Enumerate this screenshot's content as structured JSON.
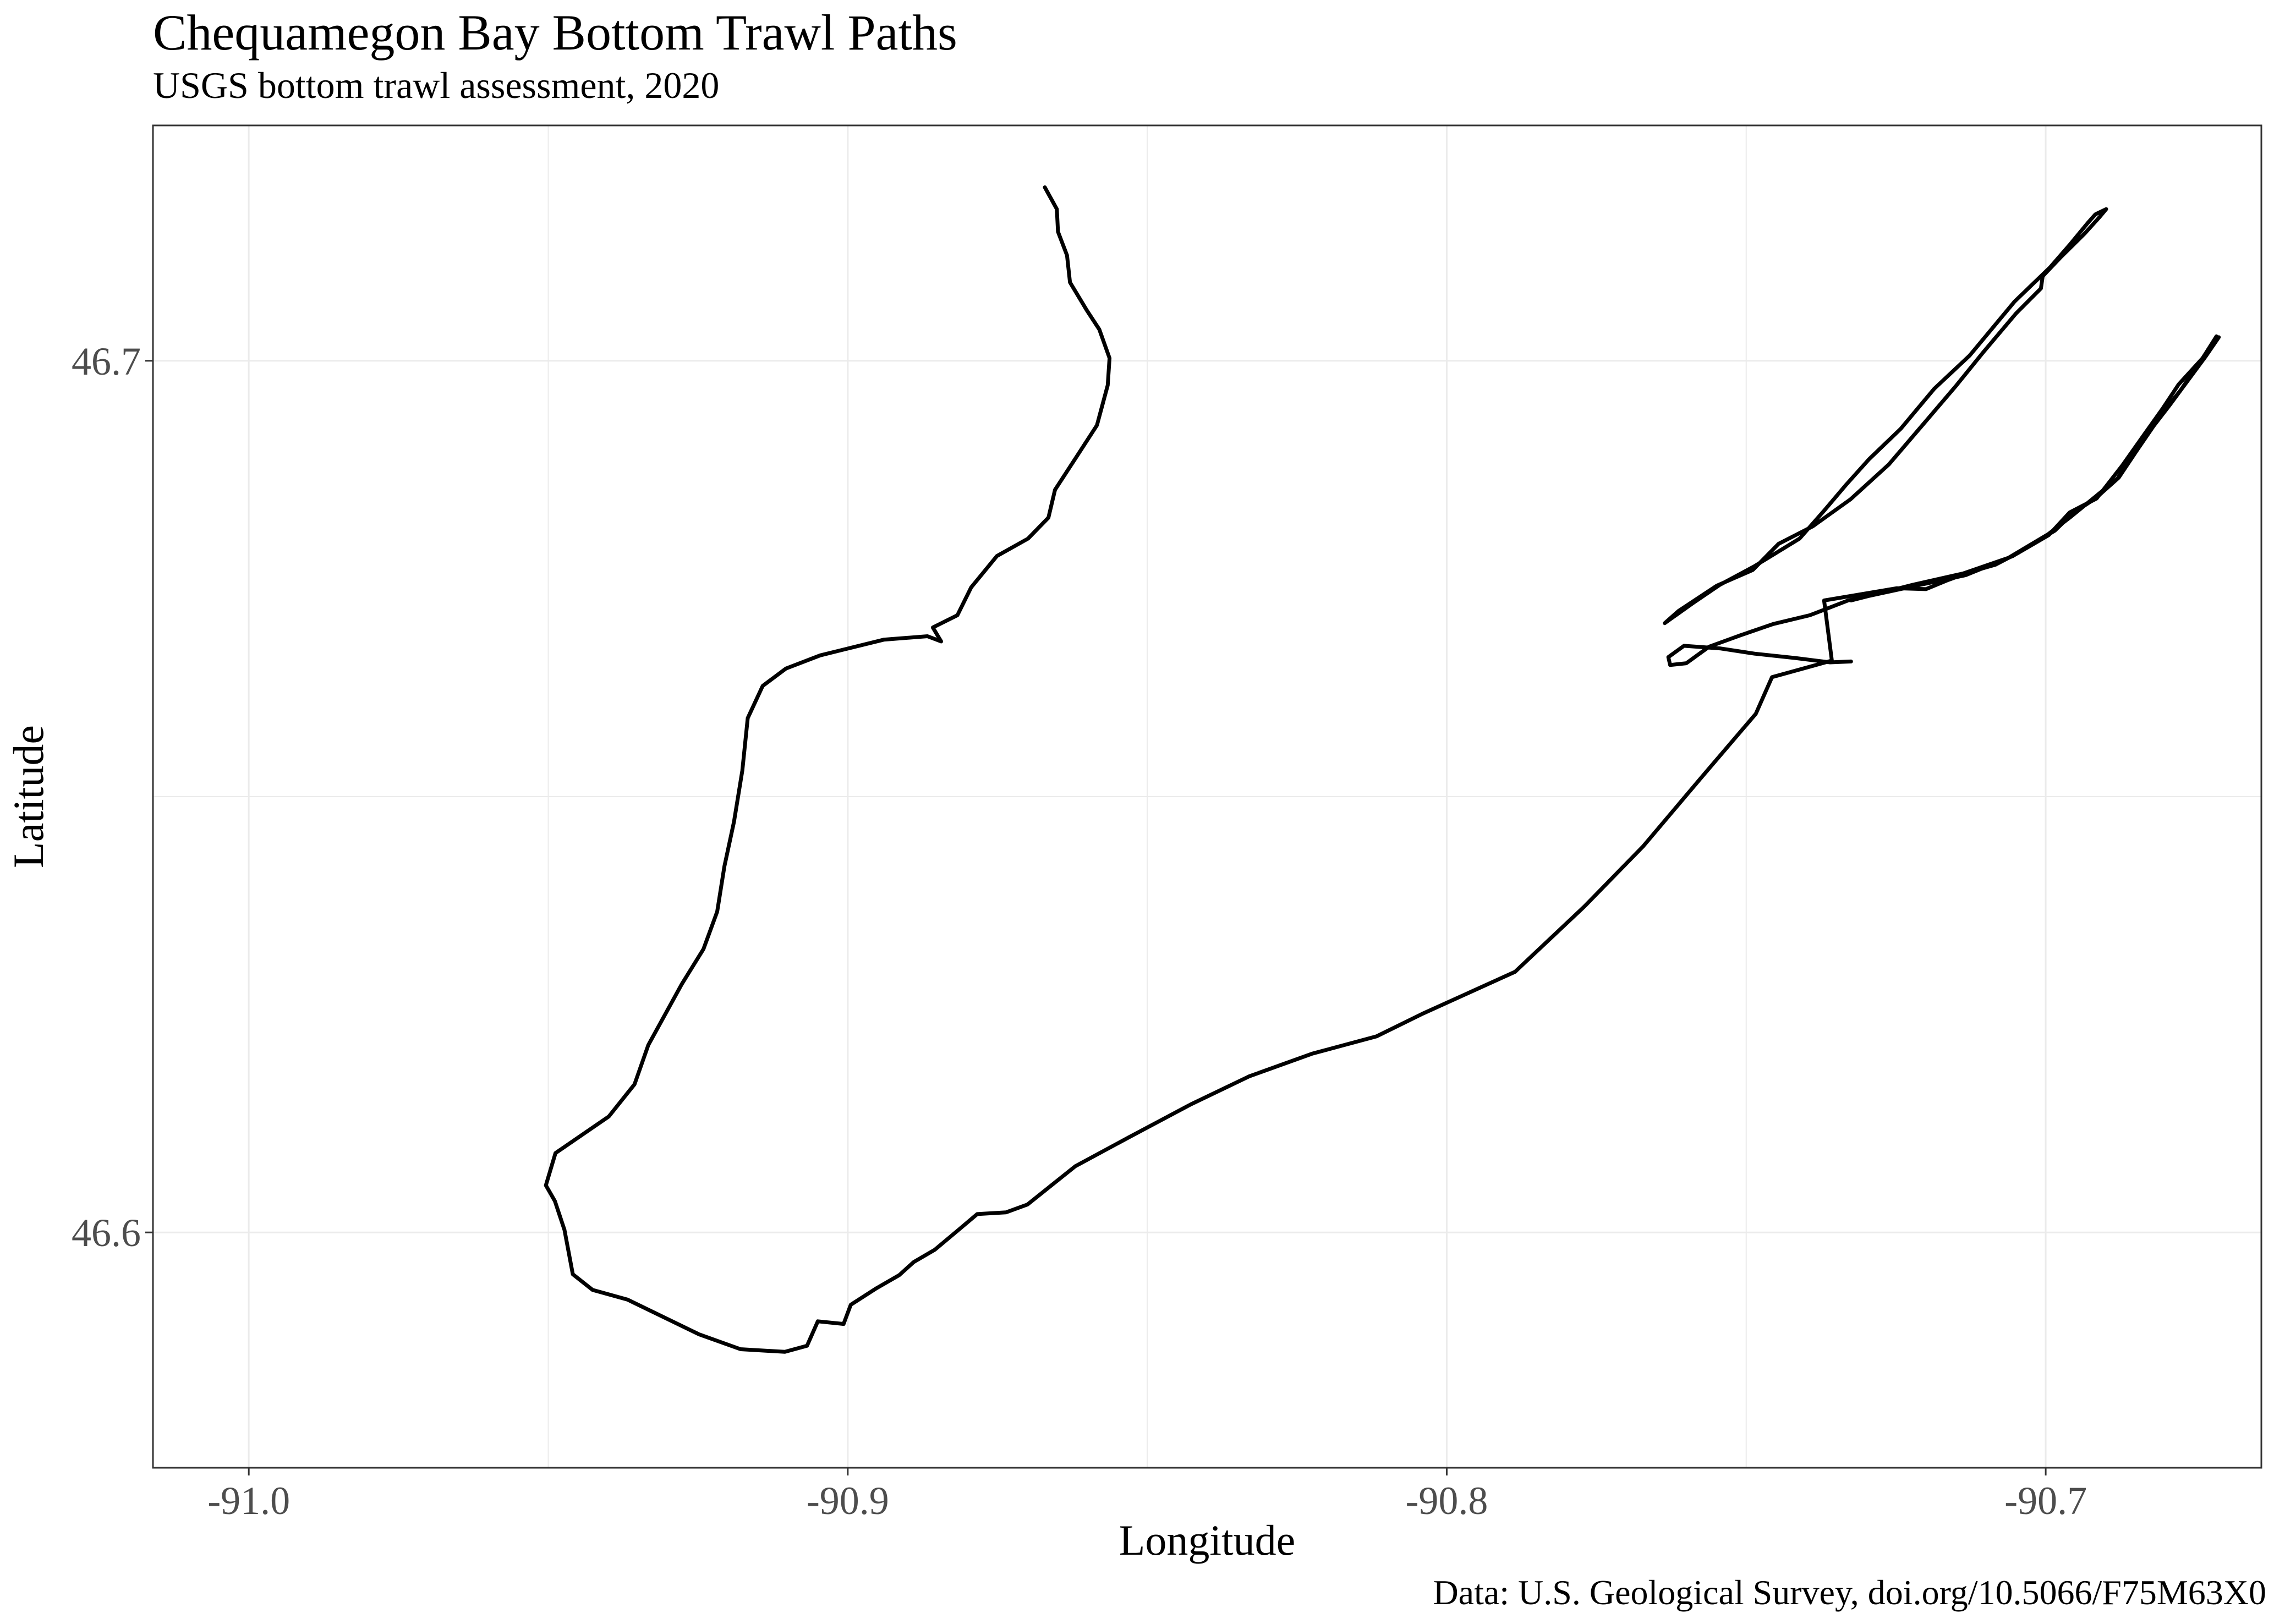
{
  "title": "Chequamegon Bay Bottom Trawl Paths",
  "subtitle": "USGS bottom trawl assessment, 2020",
  "caption": "Data: U.S. Geological Survey, doi.org/10.5066/F75M63X0",
  "colors": {
    "path": "#000000",
    "grid": "#ebebeb",
    "panel_border": "#333333",
    "tick_label": "#4d4d4d"
  },
  "chart_data": {
    "type": "line",
    "xlabel": "Longitude",
    "ylabel": "Latitude",
    "xlim": [
      -91.016,
      -90.664
    ],
    "ylim": [
      46.573,
      46.727
    ],
    "x_ticks": [
      -91.0,
      -90.9,
      -90.8,
      -90.7
    ],
    "x_tick_labels": [
      "-91.0",
      "-90.9",
      "-90.8",
      "-90.7"
    ],
    "y_ticks": [
      46.6,
      46.7
    ],
    "y_tick_labels": [
      "46.6",
      "46.7"
    ],
    "grid": true,
    "legend": "none",
    "series": [
      {
        "values": [
          [
            -90.8671,
            46.7199
          ],
          [
            -90.8651,
            46.7174
          ],
          [
            -90.8649,
            46.7148
          ],
          [
            -90.8634,
            46.7121
          ],
          [
            -90.8629,
            46.709
          ],
          [
            -90.8601,
            46.7058
          ],
          [
            -90.858,
            46.7036
          ],
          [
            -90.8563,
            46.7003
          ],
          [
            -90.8566,
            46.6972
          ],
          [
            -90.8584,
            46.6926
          ],
          [
            -90.8618,
            46.689
          ],
          [
            -90.8654,
            46.6852
          ],
          [
            -90.8665,
            46.682
          ],
          [
            -90.8699,
            46.6796
          ],
          [
            -90.8751,
            46.6776
          ],
          [
            -90.8794,
            46.674
          ],
          [
            -90.8817,
            46.6708
          ],
          [
            -90.8858,
            46.6694
          ],
          [
            -90.8844,
            46.6678
          ],
          [
            -90.8867,
            46.6684
          ],
          [
            -90.894,
            46.668
          ],
          [
            -90.9046,
            46.6662
          ],
          [
            -90.9103,
            46.6647
          ],
          [
            -90.9142,
            46.6627
          ],
          [
            -90.9167,
            46.659
          ],
          [
            -90.9176,
            46.653
          ],
          [
            -90.919,
            46.6471
          ],
          [
            -90.9206,
            46.642
          ],
          [
            -90.9218,
            46.6368
          ],
          [
            -90.9241,
            46.6325
          ],
          [
            -90.9277,
            46.6285
          ],
          [
            -90.9305,
            46.625
          ],
          [
            -90.9333,
            46.6215
          ],
          [
            -90.9356,
            46.617
          ],
          [
            -90.9399,
            46.6133
          ],
          [
            -90.9488,
            46.6091
          ],
          [
            -90.9504,
            46.6054
          ],
          [
            -90.9489,
            46.6036
          ],
          [
            -90.9473,
            46.6003
          ],
          [
            -90.9459,
            46.5952
          ],
          [
            -90.9426,
            46.5934
          ],
          [
            -90.9368,
            46.5923
          ],
          [
            -90.9248,
            46.5883
          ],
          [
            -90.9179,
            46.5866
          ],
          [
            -90.9105,
            46.5863
          ],
          [
            -90.9068,
            46.587
          ],
          [
            -90.905,
            46.5898
          ],
          [
            -90.9007,
            46.5895
          ],
          [
            -90.8995,
            46.5917
          ],
          [
            -90.8952,
            46.5936
          ],
          [
            -90.8914,
            46.5951
          ],
          [
            -90.889,
            46.5966
          ],
          [
            -90.8855,
            46.598
          ],
          [
            -90.8815,
            46.6003
          ],
          [
            -90.8784,
            46.6021
          ],
          [
            -90.8736,
            46.6023
          ],
          [
            -90.87,
            46.6032
          ],
          [
            -90.862,
            46.6076
          ],
          [
            -90.8531,
            46.6109
          ],
          [
            -90.8427,
            46.6147
          ],
          [
            -90.833,
            46.6179
          ],
          [
            -90.8225,
            46.6205
          ],
          [
            -90.8117,
            46.6225
          ],
          [
            -90.804,
            46.6251
          ],
          [
            -90.7886,
            46.6299
          ],
          [
            -90.777,
            46.6374
          ],
          [
            -90.7672,
            46.6443
          ],
          [
            -90.7576,
            46.6521
          ],
          [
            -90.7484,
            46.6595
          ],
          [
            -90.7457,
            46.6637
          ],
          [
            -90.7357,
            46.6656
          ],
          [
            -90.737,
            46.6725
          ],
          [
            -90.7249,
            46.6739
          ],
          [
            -90.72,
            46.6738
          ],
          [
            -90.7165,
            46.6748
          ],
          [
            -90.7125,
            46.6758
          ],
          [
            -90.7084,
            46.6766
          ],
          [
            -90.7045,
            46.678
          ],
          [
            -90.6995,
            46.68
          ],
          [
            -90.696,
            46.6826
          ],
          [
            -90.6915,
            46.6842
          ],
          [
            -90.6872,
            46.688
          ],
          [
            -90.6835,
            46.6916
          ],
          [
            -90.6805,
            46.6945
          ],
          [
            -90.6778,
            46.6973
          ],
          [
            -90.6738,
            46.7003
          ],
          [
            -90.6715,
            46.7028
          ]
        ]
      },
      {
        "values": [
          [
            -90.7636,
            46.6699
          ],
          [
            -90.7589,
            46.6722
          ],
          [
            -90.7544,
            46.6743
          ],
          [
            -90.7487,
            46.6764
          ],
          [
            -90.7411,
            46.6796
          ],
          [
            -90.737,
            46.6828
          ],
          [
            -90.7333,
            46.6858
          ],
          [
            -90.7295,
            46.6887
          ],
          [
            -90.7242,
            46.6922
          ],
          [
            -90.7186,
            46.6968
          ],
          [
            -90.7127,
            46.7006
          ],
          [
            -90.7052,
            46.7068
          ],
          [
            -90.6993,
            46.7107
          ],
          [
            -90.696,
            46.7133
          ],
          [
            -90.693,
            46.7158
          ],
          [
            -90.6917,
            46.7168
          ],
          [
            -90.6899,
            46.7174
          ],
          [
            -90.691,
            46.7165
          ],
          [
            -90.6935,
            46.7146
          ],
          [
            -90.6976,
            46.7118
          ],
          [
            -90.7005,
            46.7097
          ],
          [
            -90.7008,
            46.7083
          ],
          [
            -90.705,
            46.7054
          ],
          [
            -90.7104,
            46.701
          ],
          [
            -90.715,
            46.6971
          ],
          [
            -90.7201,
            46.693
          ],
          [
            -90.7262,
            46.6881
          ],
          [
            -90.7326,
            46.6841
          ],
          [
            -90.7389,
            46.681
          ],
          [
            -90.7446,
            46.679
          ],
          [
            -90.7489,
            46.676
          ],
          [
            -90.7549,
            46.6742
          ],
          [
            -90.7613,
            46.6713
          ],
          [
            -90.7636,
            46.6699
          ]
        ]
      },
      {
        "values": [
          [
            -90.7325,
            46.6655
          ],
          [
            -90.736,
            46.6654
          ],
          [
            -90.7418,
            46.6659
          ],
          [
            -90.7486,
            46.6664
          ],
          [
            -90.7544,
            46.667
          ],
          [
            -90.7604,
            46.6673
          ],
          [
            -90.763,
            46.666
          ],
          [
            -90.7627,
            46.6651
          ],
          [
            -90.76,
            46.6653
          ],
          [
            -90.7562,
            46.6672
          ],
          [
            -90.751,
            46.6685
          ],
          [
            -90.7455,
            46.6698
          ],
          [
            -90.7394,
            46.6708
          ],
          [
            -90.733,
            46.6725
          ],
          [
            -90.7216,
            46.6742
          ],
          [
            -90.7134,
            46.6754
          ],
          [
            -90.7055,
            46.6776
          ],
          [
            -90.6985,
            46.6805
          ],
          [
            -90.6955,
            46.6825
          ],
          [
            -90.6917,
            46.6842
          ],
          [
            -90.6878,
            46.6866
          ],
          [
            -90.6848,
            46.6897
          ],
          [
            -90.682,
            46.6925
          ],
          [
            -90.6792,
            46.695
          ],
          [
            -90.6763,
            46.6977
          ],
          [
            -90.6733,
            46.7005
          ],
          [
            -90.6711,
            46.7027
          ],
          [
            -90.6736,
            46.7005
          ],
          [
            -90.6775,
            46.6966
          ],
          [
            -90.6817,
            46.693
          ],
          [
            -90.685,
            46.6898
          ],
          [
            -90.688,
            46.6865
          ],
          [
            -90.6919,
            46.6843
          ],
          [
            -90.696,
            46.682
          ],
          [
            -90.6996,
            46.6801
          ],
          [
            -90.7062,
            46.6774
          ],
          [
            -90.7138,
            46.6756
          ],
          [
            -90.7222,
            46.6743
          ],
          [
            -90.7325,
            46.6725
          ]
        ]
      }
    ]
  }
}
